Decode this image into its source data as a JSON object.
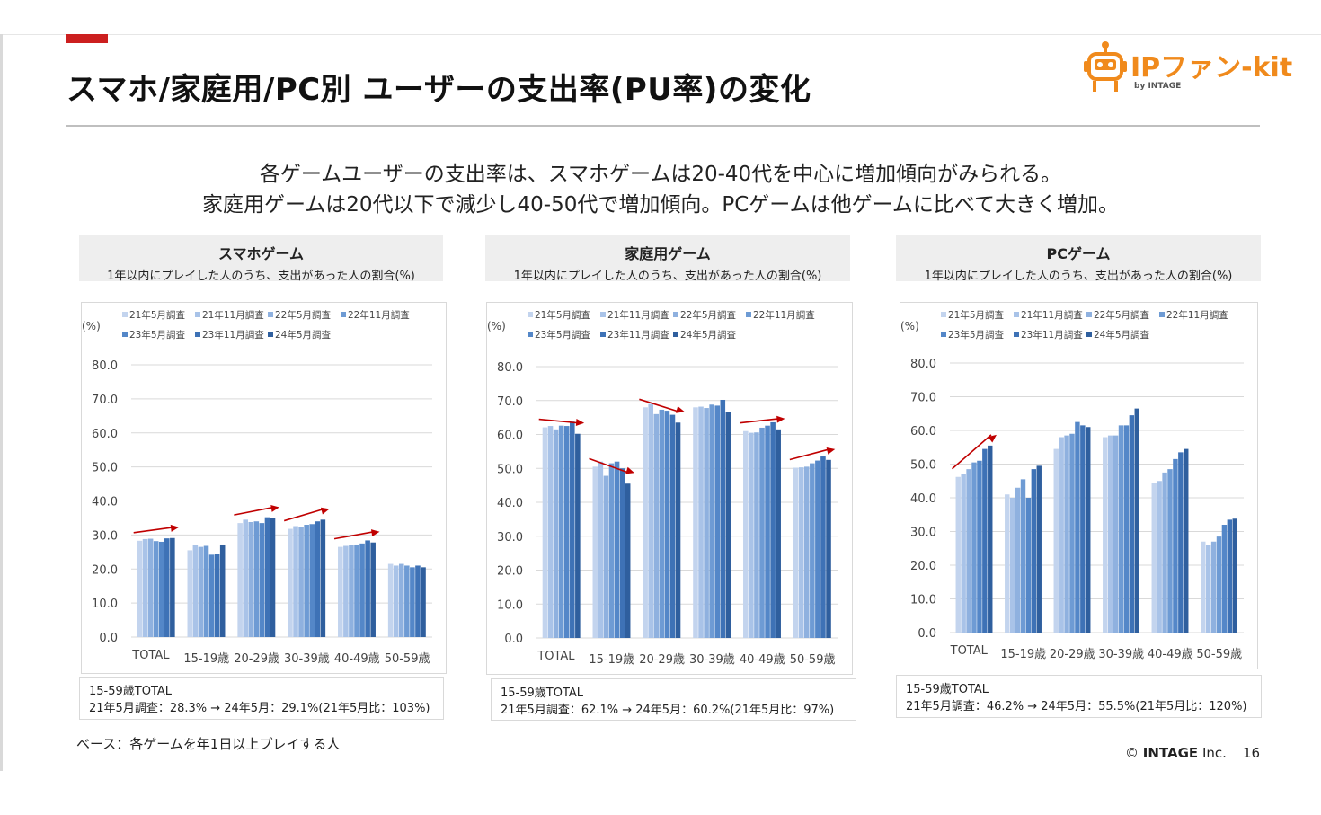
{
  "header": {
    "title": "スマホ/家庭用/PC別 ユーザーの支出率(PU率)の変化",
    "logo_text": "IPファン-kit",
    "logo_sub": "by INTAGE"
  },
  "summary": {
    "line1": "各ゲームユーザーの支出率は、スマホゲームは20-40代を中心に増加傾向がみられる。",
    "line2": "家庭用ゲームは20代以下で減少し40-50代で増加傾向。PCゲームは他ゲームに比べて大きく増加。"
  },
  "colors": {
    "accent_red": "#cc1f1f",
    "arrow_red": "#c00000",
    "logo_orange": "#f08a1c",
    "series": [
      "#c3d4ee",
      "#a9c3e8",
      "#8fb1df",
      "#6e9bd4",
      "#5487c8",
      "#3e72b6",
      "#2f5f9e"
    ]
  },
  "panels": [
    {
      "title": "スマホゲーム",
      "subtitle": "1年以内にプレイした人のうち、支出があった人の割合(%)",
      "note_line1": "15-59歳TOTAL",
      "note_line2": "21年5月調査：28.3% → 24年5月：29.1%(21年5月比：103%)"
    },
    {
      "title": "家庭用ゲーム",
      "subtitle": "1年以内にプレイした人のうち、支出があった人の割合(%)",
      "note_line1": "15-59歳TOTAL",
      "note_line2": "21年5月調査：62.1% → 24年5月：60.2%(21年5月比：97%)"
    },
    {
      "title": "PCゲーム",
      "subtitle": "1年以内にプレイした人のうち、支出があった人の割合(%)",
      "note_line1": "15-59歳TOTAL",
      "note_line2": "21年5月調査：46.2% → 24年5月：55.5%(21年5月比：120%)"
    }
  ],
  "chart_data": [
    {
      "type": "bar",
      "title": "スマホゲーム",
      "ylabel": "(%)",
      "ylim": [
        0,
        80
      ],
      "yticks": [
        "0.0",
        "10.0",
        "20.0",
        "30.0",
        "40.0",
        "50.0",
        "60.0",
        "70.0",
        "80.0"
      ],
      "grid": true,
      "legend": "top",
      "categories": [
        "TOTAL",
        "15-19歳",
        "20-29歳",
        "30-39歳",
        "40-49歳",
        "50-59歳"
      ],
      "series": [
        {
          "name": "21年5月調査",
          "values": [
            28.3,
            25.5,
            33.5,
            31.8,
            26.5,
            21.5
          ]
        },
        {
          "name": "21年11月調査",
          "values": [
            28.8,
            27.0,
            34.5,
            32.6,
            26.8,
            21.0
          ]
        },
        {
          "name": "22年5月調査",
          "values": [
            28.9,
            26.5,
            33.8,
            32.4,
            27.0,
            21.5
          ]
        },
        {
          "name": "22年11月調査",
          "values": [
            28.2,
            26.8,
            34.0,
            33.0,
            27.2,
            21.0
          ]
        },
        {
          "name": "23年5月調査",
          "values": [
            28.0,
            24.2,
            33.5,
            33.2,
            27.5,
            20.5
          ]
        },
        {
          "name": "23年11月調査",
          "values": [
            29.0,
            24.5,
            35.2,
            34.0,
            28.4,
            21.0
          ]
        },
        {
          "name": "24年5月調査",
          "values": [
            29.1,
            27.2,
            35.0,
            34.5,
            27.8,
            20.5
          ]
        }
      ],
      "arrows": [
        0,
        2,
        3,
        4
      ]
    },
    {
      "type": "bar",
      "title": "家庭用ゲーム",
      "ylabel": "(%)",
      "ylim": [
        0,
        80
      ],
      "yticks": [
        "0.0",
        "10.0",
        "20.0",
        "30.0",
        "40.0",
        "50.0",
        "60.0",
        "70.0",
        "80.0"
      ],
      "grid": true,
      "legend": "top",
      "categories": [
        "TOTAL",
        "15-19歳",
        "20-29歳",
        "30-39歳",
        "40-49歳",
        "50-59歳"
      ],
      "series": [
        {
          "name": "21年5月調査",
          "values": [
            62.1,
            50.5,
            68.0,
            68.0,
            61.0,
            50.2
          ]
        },
        {
          "name": "21年11月調査",
          "values": [
            62.5,
            52.0,
            69.0,
            68.2,
            60.5,
            50.3
          ]
        },
        {
          "name": "22年5月調査",
          "values": [
            61.5,
            47.8,
            66.0,
            67.8,
            60.6,
            50.5
          ]
        },
        {
          "name": "22年11月調査",
          "values": [
            62.6,
            51.5,
            67.3,
            68.8,
            62.0,
            51.5
          ]
        },
        {
          "name": "23年5月調査",
          "values": [
            62.5,
            52.0,
            67.0,
            68.5,
            62.6,
            52.3
          ]
        },
        {
          "name": "23年11月調査",
          "values": [
            63.8,
            50.0,
            65.8,
            70.2,
            63.6,
            53.5
          ]
        },
        {
          "name": "24年5月調査",
          "values": [
            60.2,
            45.5,
            63.5,
            66.5,
            61.5,
            52.5
          ]
        }
      ],
      "arrows": [
        0,
        1,
        2,
        4,
        5
      ]
    },
    {
      "type": "bar",
      "title": "PCゲーム",
      "ylabel": "(%)",
      "ylim": [
        0,
        80
      ],
      "yticks": [
        "0.0",
        "10.0",
        "20.0",
        "30.0",
        "40.0",
        "50.0",
        "60.0",
        "70.0",
        "80.0"
      ],
      "grid": true,
      "legend": "top",
      "categories": [
        "TOTAL",
        "15-19歳",
        "20-29歳",
        "30-39歳",
        "40-49歳",
        "50-59歳"
      ],
      "series": [
        {
          "name": "21年5月調査",
          "values": [
            46.2,
            41.0,
            54.5,
            58.0,
            44.5,
            27.0
          ]
        },
        {
          "name": "21年11月調査",
          "values": [
            47.0,
            40.0,
            58.0,
            58.5,
            45.0,
            26.0
          ]
        },
        {
          "name": "22年5月調査",
          "values": [
            48.5,
            43.0,
            58.5,
            58.5,
            47.5,
            27.0
          ]
        },
        {
          "name": "22年11月調査",
          "values": [
            50.5,
            45.5,
            59.0,
            61.5,
            48.5,
            28.5
          ]
        },
        {
          "name": "23年5月調査",
          "values": [
            51.0,
            40.0,
            62.5,
            61.5,
            51.5,
            32.0
          ]
        },
        {
          "name": "23年11月調査",
          "values": [
            54.5,
            48.5,
            61.5,
            64.5,
            53.5,
            33.5
          ]
        },
        {
          "name": "24年5月調査",
          "values": [
            55.5,
            49.5,
            61.0,
            66.5,
            54.5,
            33.8
          ]
        }
      ],
      "arrows": [
        0
      ]
    }
  ],
  "footer": {
    "base_note": "ベース：各ゲームを年1日以上プレイする人",
    "copyright_symbol": "©",
    "copyright": "INTAGE",
    "copyright_suffix": "Inc.",
    "page_number": "16"
  }
}
